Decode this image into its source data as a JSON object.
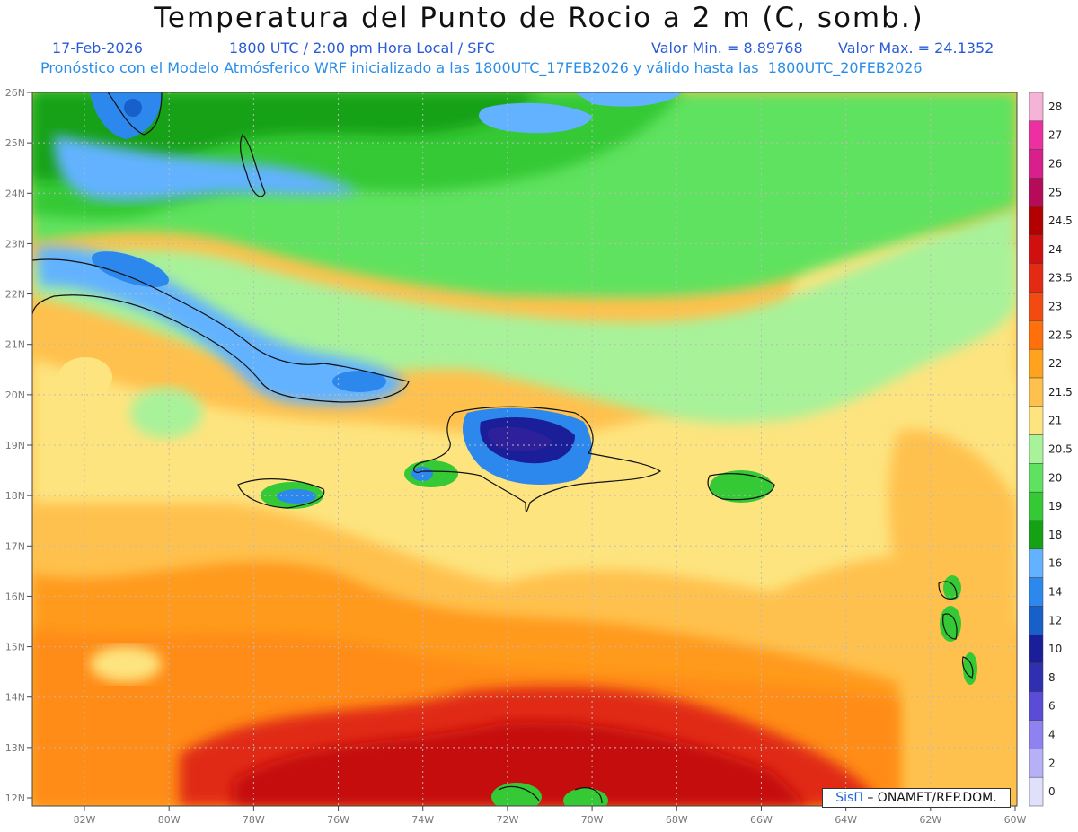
{
  "header": {
    "title": "Temperatura del Punto de Rocio a 2 m (C, somb.)",
    "date": "17-Feb-2026",
    "time": "1800 UTC / 2:00 pm Hora Local / SFC",
    "vmin": "Valor Min. = 8.89768",
    "vmax": "Valor Max. = 24.1352",
    "model": "Pronóstico con el Modelo Atmósferico WRF inicializado a las 1800UTC_17FEB2026 y válido hasta las  1800UTC_20FEB2026"
  },
  "credit": {
    "brand": "SisΠ",
    "text": "– ONAMET/REP.DOM."
  },
  "axes": {
    "lat_labels": [
      "26N",
      "25N",
      "24N",
      "23N",
      "22N",
      "21N",
      "20N",
      "19N",
      "18N",
      "17N",
      "16N",
      "15N",
      "14N",
      "13N",
      "12N"
    ],
    "lon_labels": [
      "82W",
      "80W",
      "78W",
      "76W",
      "74W",
      "72W",
      "70W",
      "68W",
      "66W",
      "64W",
      "62W",
      "60W"
    ]
  },
  "legend": {
    "labels": [
      "28",
      "27",
      "26",
      "25",
      "24.5",
      "24",
      "23.5",
      "23",
      "22.5",
      "22",
      "21.5",
      "21",
      "20.5",
      "20",
      "19",
      "18",
      "16",
      "14",
      "12",
      "10",
      "8",
      "6",
      "4",
      "2",
      "0"
    ],
    "colors": [
      "#f5b3d8",
      "#ee2fa2",
      "#d91f8c",
      "#b60b59",
      "#b30000",
      "#d10f0f",
      "#e32b14",
      "#f24a10",
      "#ff6f0b",
      "#ffa31f",
      "#ffc14d",
      "#fde47f",
      "#a8f29a",
      "#5fe25f",
      "#35c935",
      "#14a114",
      "#62b2ff",
      "#2d88ed",
      "#1760c9",
      "#1a1f99",
      "#2e2fb1",
      "#5a4cd6",
      "#8e82f0",
      "#b6b0f7",
      "#e0e0fb"
    ]
  },
  "map_colors": {
    "ocean_south_deep": "#d10f0f",
    "ocean_south": "#ff8c17",
    "ocean_mid": "#ffc14d",
    "ocean_light": "#fde47f",
    "green_light": "#a8f29a",
    "green": "#5fe25f",
    "green_dark": "#35c935",
    "green_darker": "#14a114",
    "blue": "#62b2ff",
    "blue_mid": "#2d88ed",
    "blue_dark": "#1760c9",
    "purple": "#2e1f9a"
  }
}
